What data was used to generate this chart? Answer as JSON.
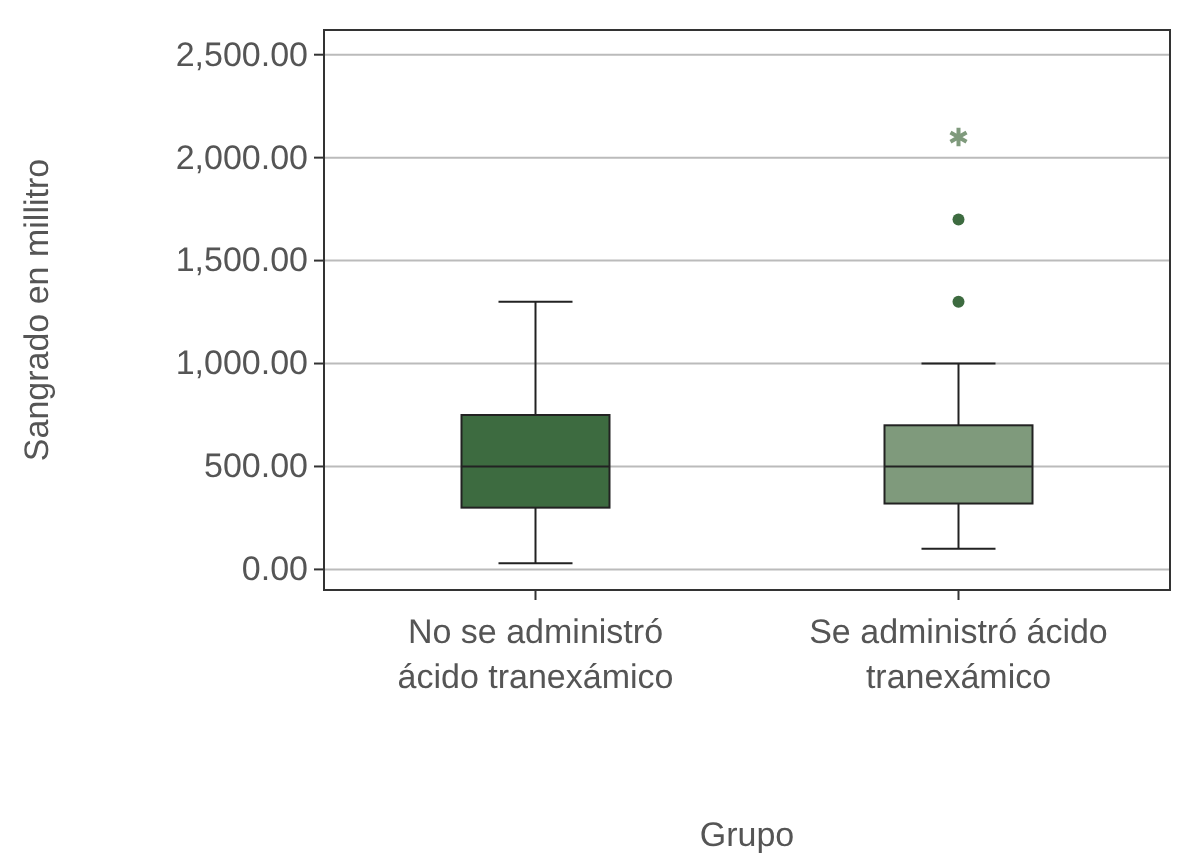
{
  "chart_data": {
    "type": "box",
    "xlabel": "Grupo",
    "ylabel": "Sangrado en millitro",
    "categories": [
      "No se administró ácido tranexámico",
      "Se administró ácido tranexámico"
    ],
    "colors": [
      "#3d6b40",
      "#7f9a7c"
    ],
    "boxes": [
      {
        "low": 30,
        "q1": 300,
        "median": 500,
        "q3": 750,
        "high": 1300
      },
      {
        "low": 100,
        "q1": 320,
        "median": 500,
        "q3": 700,
        "high": 1000,
        "outliers": [
          1300,
          1700,
          2100
        ]
      }
    ],
    "ylim": [
      -100,
      2620
    ],
    "yticks": [
      {
        "value": 0,
        "label": "0.00"
      },
      {
        "value": 500,
        "label": "500.00"
      },
      {
        "value": 1000,
        "label": "1,000.00"
      },
      {
        "value": 1500,
        "label": "1,500.00"
      },
      {
        "value": 2000,
        "label": "2,000.00"
      },
      {
        "value": 2500,
        "label": "2,500.00"
      }
    ],
    "grid": "y"
  }
}
